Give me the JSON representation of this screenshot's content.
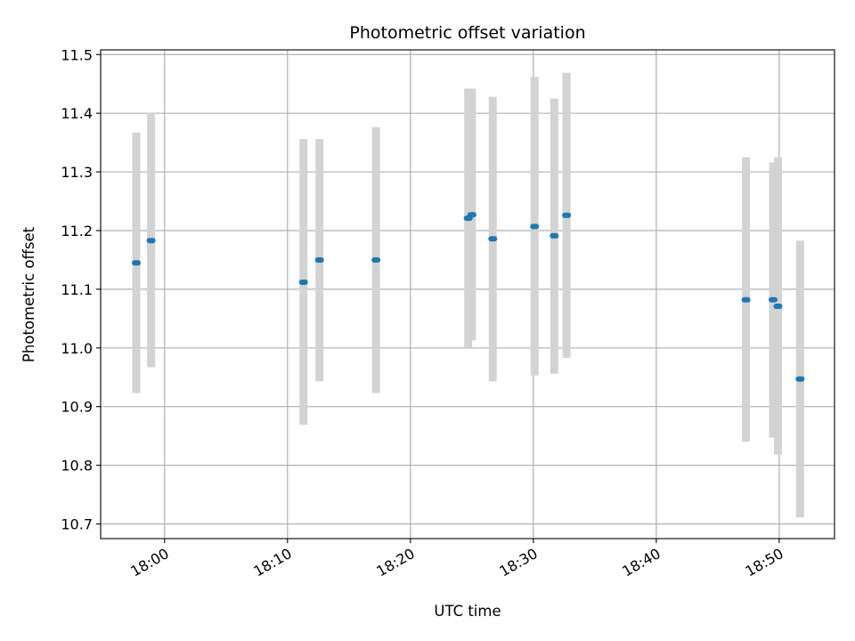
{
  "chart_data": {
    "type": "scatter",
    "title": "Photometric offset variation",
    "xlabel": "UTC time",
    "ylabel": "Photometric offset",
    "x_ticks": [
      "18:00",
      "18:10",
      "18:20",
      "18:30",
      "18:40",
      "18:50"
    ],
    "y_ticks": [
      "10.7",
      "10.8",
      "10.9",
      "11.0",
      "11.1",
      "11.2",
      "11.3",
      "11.4",
      "11.5"
    ],
    "xlim": [
      "17:54.8",
      "18:54.5"
    ],
    "ylim": [
      10.675,
      11.508
    ],
    "grid": true,
    "colors": {
      "points": "#1f77b4",
      "error_bars": "#d3d3d3"
    },
    "series": [
      {
        "points": [
          {
            "x": "17:57.7",
            "y": 11.145,
            "err_low": 10.923,
            "err_high": 11.367
          },
          {
            "x": "17:58.9",
            "y": 11.183,
            "err_low": 10.967,
            "err_high": 11.4
          },
          {
            "x": "18:11.3",
            "y": 11.112,
            "err_low": 10.869,
            "err_high": 11.356
          },
          {
            "x": "18:12.6",
            "y": 11.15,
            "err_low": 10.943,
            "err_high": 11.356
          },
          {
            "x": "18:17.2",
            "y": 11.15,
            "err_low": 10.923,
            "err_high": 11.376
          },
          {
            "x": "18:24.7",
            "y": 11.221,
            "err_low": 11.0,
            "err_high": 11.442
          },
          {
            "x": "18:25.0",
            "y": 11.227,
            "err_low": 11.013,
            "err_high": 11.442
          },
          {
            "x": "18:26.7",
            "y": 11.186,
            "err_low": 10.943,
            "err_high": 11.428
          },
          {
            "x": "18:30.1",
            "y": 11.207,
            "err_low": 10.953,
            "err_high": 11.462
          },
          {
            "x": "18:31.7",
            "y": 11.191,
            "err_low": 10.956,
            "err_high": 11.425
          },
          {
            "x": "18:32.7",
            "y": 11.226,
            "err_low": 10.983,
            "err_high": 11.469
          },
          {
            "x": "18:47.3",
            "y": 11.082,
            "err_low": 10.84,
            "err_high": 11.325
          },
          {
            "x": "18:49.5",
            "y": 11.082,
            "err_low": 10.847,
            "err_high": 11.316
          },
          {
            "x": "18:49.9",
            "y": 11.071,
            "err_low": 10.818,
            "err_high": 11.325
          },
          {
            "x": "18:51.7",
            "y": 10.947,
            "err_low": 10.711,
            "err_high": 11.183
          }
        ]
      }
    ]
  }
}
